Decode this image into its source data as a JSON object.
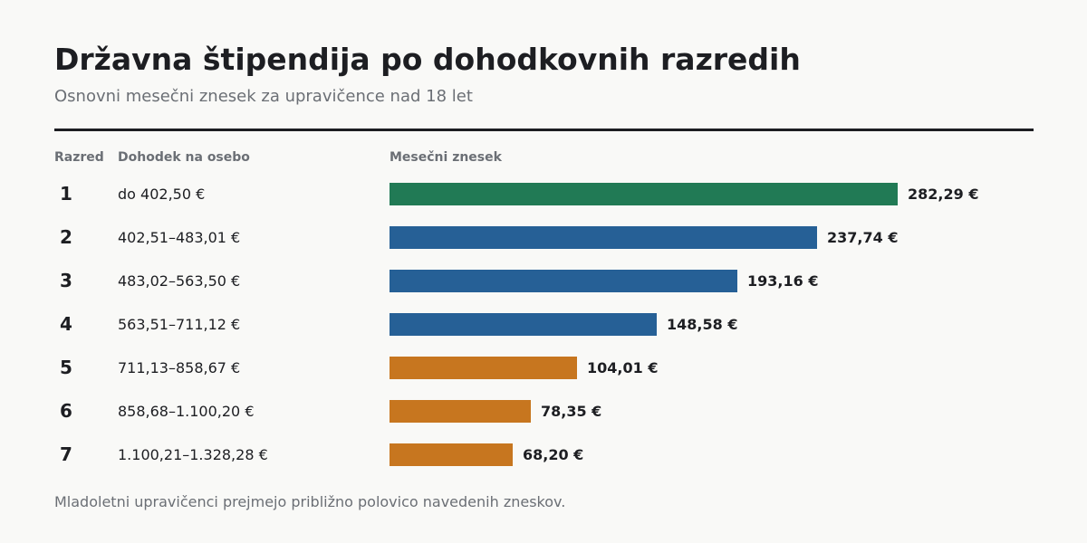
{
  "title": "Državna štipendija po dohodkovnih razredih",
  "subtitle": "Osnovni mesečni znesek za upravičence nad 18 let",
  "footnote": "Mladoletni upravičenci prejmejo približno polovico navedenih zneskov.",
  "headers": {
    "rank": "Razred",
    "income": "Dohodek na osebo",
    "amount": "Mesečni znesek"
  },
  "colors": {
    "top": "#217a55",
    "middle": "#266096",
    "lower": "#c7761f",
    "text": "#1d1e22",
    "muted": "#6b6f75",
    "background": "#f9f9f7"
  },
  "chart_data": {
    "type": "bar",
    "orientation": "horizontal",
    "categories": [
      "1",
      "2",
      "3",
      "4",
      "5",
      "6",
      "7"
    ],
    "income_ranges": [
      "do 402,50 €",
      "402,51–483,01 €",
      "483,02–563,50 €",
      "563,51–711,12 €",
      "711,13–858,67 €",
      "858,68–1.100,20 €",
      "1.100,21–1.328,28 €"
    ],
    "values": [
      282.29,
      237.74,
      193.16,
      148.58,
      104.01,
      78.35,
      68.2
    ],
    "value_labels": [
      "282,29 €",
      "237,74 €",
      "193,16 €",
      "148,58 €",
      "104,01 €",
      "78,35 €",
      "68,20 €"
    ],
    "bar_colors": [
      "#217a55",
      "#266096",
      "#266096",
      "#266096",
      "#c7761f",
      "#c7761f",
      "#c7761f"
    ],
    "xlim": [
      0,
      282.29
    ],
    "grid": false,
    "legend": "none"
  }
}
